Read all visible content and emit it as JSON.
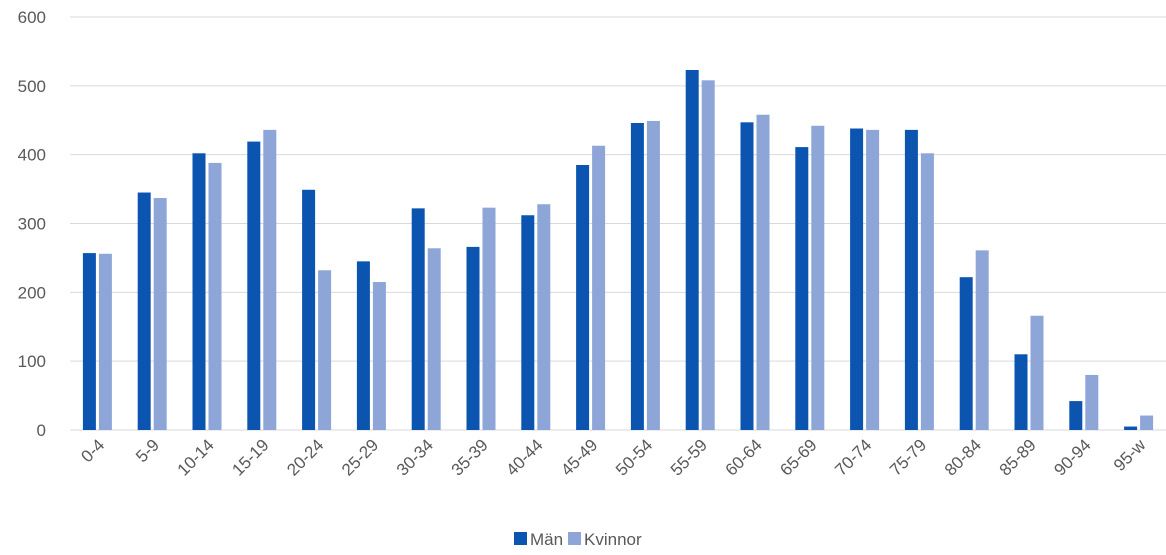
{
  "chart_data": {
    "type": "bar",
    "categories": [
      "0-4",
      "5-9",
      "10-14",
      "15-19",
      "20-24",
      "25-29",
      "30-34",
      "35-39",
      "40-44",
      "45-49",
      "50-54",
      "55-59",
      "60-64",
      "65-69",
      "70-74",
      "75-79",
      "80-84",
      "85-89",
      "90-94",
      "95-w"
    ],
    "series": [
      {
        "name": "Män",
        "color": "#0b55b0",
        "values": [
          257,
          345,
          402,
          419,
          349,
          245,
          322,
          266,
          312,
          385,
          446,
          523,
          447,
          411,
          438,
          436,
          222,
          110,
          42,
          5
        ]
      },
      {
        "name": "Kvinnor",
        "color": "#8ea5d8",
        "values": [
          256,
          337,
          388,
          436,
          232,
          215,
          264,
          323,
          328,
          413,
          449,
          508,
          458,
          442,
          436,
          402,
          261,
          166,
          80,
          21
        ]
      }
    ],
    "ylim": [
      0,
      600
    ],
    "yticks": [
      "0",
      "100",
      "200",
      "300",
      "400",
      "500",
      "600"
    ],
    "grid": true,
    "legend_position": "bottom-center",
    "gridline_color": "#d9d9d9"
  }
}
